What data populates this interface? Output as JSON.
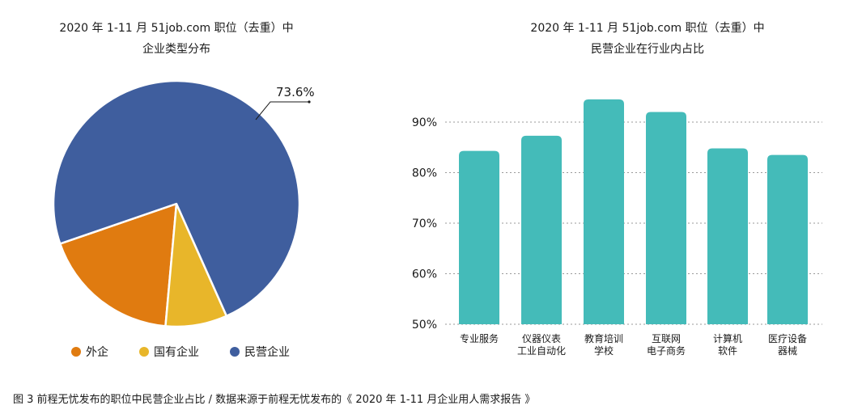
{
  "figure": {
    "caption": "图 3 前程无忧发布的职位中民营企业占比 / 数据来源于前程无忧发布的《 2020 年 1-11 月企业用人需求报告 》"
  },
  "colors": {
    "foreign": "#e07b10",
    "state": "#e8b62a",
    "private": "#3f5e9e",
    "bar": "#44bbb9",
    "grid": "#9a9a9a"
  },
  "chart_data": [
    {
      "type": "pie",
      "title": "2020 年 1-11 月 51job.com 职位（去重）中",
      "subtitle": "企业类型分布",
      "categories": [
        "外企",
        "国有企业",
        "民营企业"
      ],
      "values": [
        18.3,
        8.1,
        73.6
      ],
      "data_labels": [
        "",
        "",
        "73.6%"
      ],
      "legend": "bottom"
    },
    {
      "type": "bar",
      "title": "2020 年 1-11 月 51job.com 职位（去重）中",
      "subtitle": "民营企业在行业内占比",
      "categories": [
        [
          "专业服务"
        ],
        [
          "仪器仪表",
          "工业自动化"
        ],
        [
          "教育培训",
          "学校"
        ],
        [
          "互联网",
          "电子商务"
        ],
        [
          "计算机",
          "软件"
        ],
        [
          "医疗设备",
          "器械"
        ]
      ],
      "values": [
        84.3,
        87.3,
        94.5,
        92.0,
        84.8,
        83.5
      ],
      "ylim": [
        50,
        100
      ],
      "yticks": [
        "50%",
        "60%",
        "70%",
        "80%",
        "90%"
      ],
      "grid": "horizontal dotted"
    }
  ]
}
